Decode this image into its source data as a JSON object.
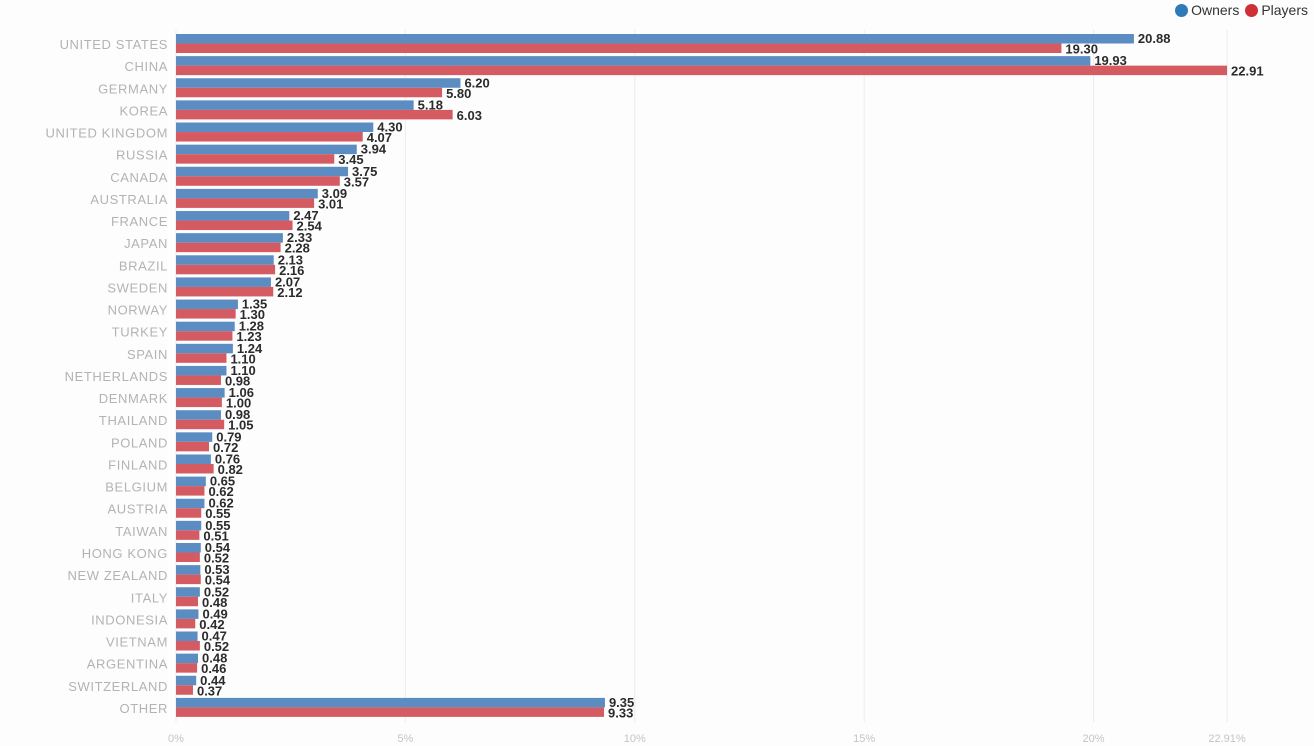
{
  "colors": {
    "owners": "#5b8cc2",
    "players": "#d55b63",
    "legend_owners": "#2f7ab8",
    "legend_players": "#cf2f36",
    "grid": "#ececec"
  },
  "legend": {
    "owners_label": "Owners",
    "players_label": "Players"
  },
  "chart_data": {
    "type": "bar",
    "orientation": "horizontal",
    "title": "",
    "xlabel": "",
    "ylabel": "",
    "xlim": [
      0,
      24.5
    ],
    "grid": true,
    "legend_position": "top-right",
    "categories": [
      "UNITED STATES",
      "CHINA",
      "GERMANY",
      "KOREA",
      "UNITED KINGDOM",
      "RUSSIA",
      "CANADA",
      "AUSTRALIA",
      "FRANCE",
      "JAPAN",
      "BRAZIL",
      "SWEDEN",
      "NORWAY",
      "TURKEY",
      "SPAIN",
      "NETHERLANDS",
      "DENMARK",
      "THAILAND",
      "POLAND",
      "FINLAND",
      "BELGIUM",
      "AUSTRIA",
      "TAIWAN",
      "HONG KONG",
      "NEW ZEALAND",
      "ITALY",
      "INDONESIA",
      "VIETNAM",
      "ARGENTINA",
      "SWITZERLAND",
      "OTHER"
    ],
    "series": [
      {
        "name": "Owners",
        "values": [
          20.88,
          19.93,
          6.2,
          5.18,
          4.3,
          3.94,
          3.75,
          3.09,
          2.47,
          2.33,
          2.13,
          2.07,
          1.35,
          1.28,
          1.24,
          1.1,
          1.06,
          0.98,
          0.79,
          0.76,
          0.65,
          0.62,
          0.55,
          0.54,
          0.53,
          0.52,
          0.49,
          0.47,
          0.48,
          0.44,
          9.35
        ],
        "labels": [
          "20.88",
          "19.93",
          "6.20",
          "5.18",
          "4.30",
          "3.94",
          "3.75",
          "3.09",
          "2.47",
          "2.33",
          "2.13",
          "2.07",
          "1.35",
          "1.28",
          "1.24",
          "1.10",
          "1.06",
          "0.98",
          "0.79",
          "0.76",
          "0.65",
          "0.62",
          "0.55",
          "0.54",
          "0.53",
          "0.52",
          "0.49",
          "0.47",
          "0.48",
          "0.44",
          "9.35"
        ]
      },
      {
        "name": "Players",
        "values": [
          19.3,
          22.91,
          5.8,
          6.03,
          4.07,
          3.45,
          3.57,
          3.01,
          2.54,
          2.28,
          2.16,
          2.12,
          1.3,
          1.23,
          1.1,
          0.98,
          1.0,
          1.05,
          0.72,
          0.82,
          0.62,
          0.55,
          0.51,
          0.52,
          0.54,
          0.48,
          0.42,
          0.52,
          0.46,
          0.37,
          9.33
        ],
        "labels": [
          "19.30",
          "22.91",
          "5.80",
          "6.03",
          "4.07",
          "3.45",
          "3.57",
          "3.01",
          "2.54",
          "2.28",
          "2.16",
          "2.12",
          "1.30",
          "1.23",
          "1.10",
          "0.98",
          "1.00",
          "1.05",
          "0.72",
          "0.82",
          "0.62",
          "0.55",
          "0.51",
          "0.52",
          "0.54",
          "0.48",
          "0.42",
          "0.52",
          "0.46",
          "0.37",
          "9.33"
        ]
      }
    ],
    "x_ticks": [
      {
        "value": 0,
        "label": "0%"
      },
      {
        "value": 5,
        "label": "5%"
      },
      {
        "value": 10,
        "label": "10%"
      },
      {
        "value": 15,
        "label": "15%"
      },
      {
        "value": 20,
        "label": "20%"
      },
      {
        "value": 22.91,
        "label": "22.91%"
      }
    ]
  }
}
